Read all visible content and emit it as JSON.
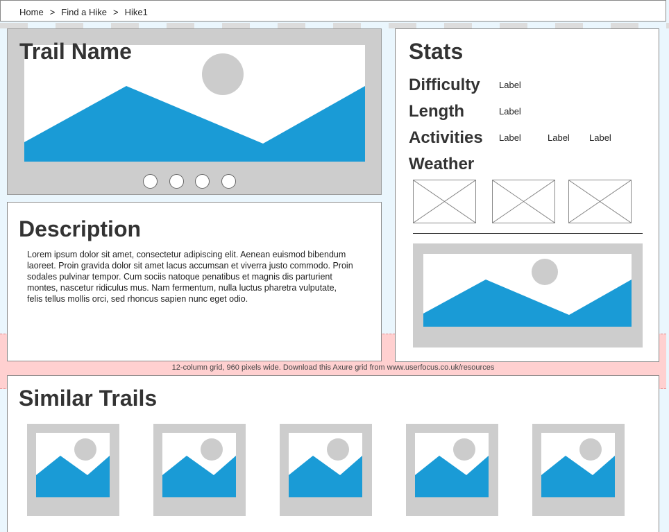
{
  "breadcrumb": {
    "items": [
      "Home",
      "Find a Hike",
      "Hike1"
    ],
    "separator": ">"
  },
  "hero": {
    "title": "Trail Name",
    "image_icon": "image-placeholder-icon",
    "carousel_dots": 4
  },
  "description": {
    "title": "Description",
    "body": "Lorem ipsum dolor sit amet, consectetur adipiscing elit. Aenean euismod bibendum laoreet. Proin gravida dolor sit amet lacus accumsan et viverra justo commodo. Proin sodales pulvinar tempor. Cum sociis natoque penatibus et magnis dis parturient montes, nascetur ridiculus mus. Nam fermentum, nulla luctus pharetra vulputate, felis tellus mollis orci, sed rhoncus sapien nunc eget odio."
  },
  "grid_note": "12-column grid, 960 pixels wide. Download this Axure grid from www.userfocus.co.uk/resources",
  "stats": {
    "title": "Stats",
    "difficulty": {
      "label": "Difficulty",
      "values": [
        "Label"
      ]
    },
    "length": {
      "label": "Length",
      "values": [
        "Label"
      ]
    },
    "activities": {
      "label": "Activities",
      "values": [
        "Label",
        "Label",
        "Label"
      ]
    },
    "weather": {
      "label": "Weather",
      "boxes": 3
    }
  },
  "similar": {
    "title": "Similar Trails",
    "thumbs": 5
  },
  "colors": {
    "mountain": "#1a9bd6",
    "placeholder_frame": "#cdcdcd",
    "sun": "#cccccc",
    "grid_band": "#ffd0d0"
  }
}
